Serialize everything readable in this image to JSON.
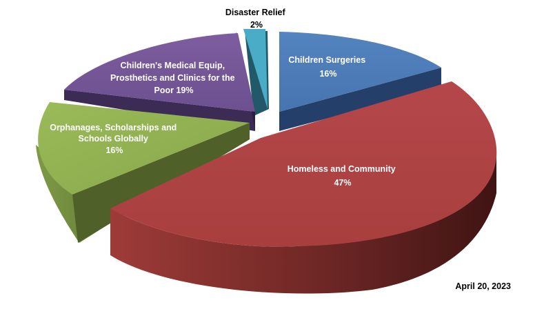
{
  "chart_data": {
    "type": "pie",
    "style": "3d-exploded",
    "slices": [
      {
        "label_lines": [
          "Disaster Relief",
          "2%"
        ],
        "value": 2,
        "color": "#4aacc6",
        "label_color": "#000000"
      },
      {
        "label_lines": [
          "Children Surgeries",
          "16%"
        ],
        "value": 16,
        "color": "#4f81bd",
        "label_color": "#ffffff"
      },
      {
        "label_lines": [
          "Homeless and Community",
          "47%"
        ],
        "value": 47,
        "color": "#c0504d",
        "label_color": "#ffffff"
      },
      {
        "label_lines": [
          "Orphanages, Scholarships and",
          "Schools Globally",
          "16%"
        ],
        "value": 16,
        "color": "#9bbb59",
        "label_color": "#ffffff"
      },
      {
        "label_lines": [
          "Children's Medical Equip,",
          "Prosthetics and Clinics for the",
          "Poor  19%"
        ],
        "value": 19,
        "color": "#8064a2",
        "label_color": "#ffffff"
      }
    ]
  },
  "footer": {
    "date": "April 20,  2023"
  }
}
